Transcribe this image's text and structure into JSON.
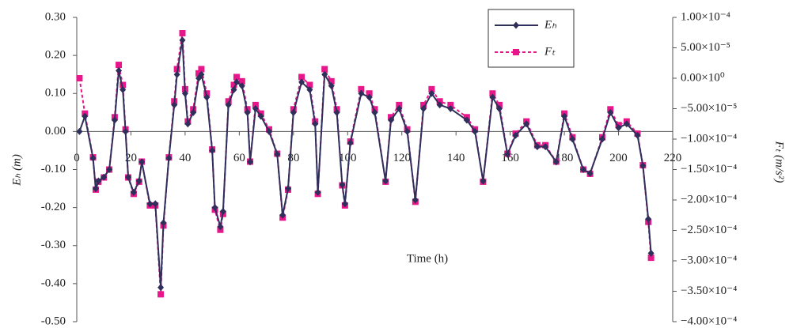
{
  "chart_data": {
    "type": "line",
    "xlabel": "Time (h)",
    "ylabel": "Eₕ (m)",
    "y2label": "Fₜ (m/s²)",
    "x": [
      1,
      3,
      6,
      7,
      8,
      10,
      12,
      14,
      15.5,
      17,
      18,
      19,
      21,
      23,
      24,
      27,
      29,
      31,
      32,
      34,
      36,
      37,
      39,
      40,
      41,
      43,
      45,
      46,
      48,
      50,
      51,
      53,
      54,
      56,
      58,
      59,
      61,
      63,
      64,
      66,
      68,
      71,
      74,
      76,
      78,
      80,
      83,
      86,
      88,
      89,
      91.5,
      94,
      96,
      98,
      99,
      101,
      105,
      108,
      110,
      114,
      116,
      119,
      122,
      125,
      128,
      131,
      134,
      138,
      144,
      147,
      150,
      153.5,
      156,
      159,
      162,
      166,
      170,
      173,
      177,
      180,
      183,
      187,
      189.5,
      194,
      197,
      200,
      203,
      207,
      209,
      211,
      212
    ],
    "series": [
      {
        "name": "Eₕ",
        "color": "#2e2f5a",
        "marker": "diamond",
        "dash": false,
        "values": [
          0,
          0.04,
          -0.07,
          -0.15,
          -0.13,
          -0.12,
          -0.1,
          0.03,
          0.16,
          0.11,
          0.0,
          -0.12,
          -0.16,
          -0.13,
          -0.08,
          -0.19,
          -0.19,
          -0.41,
          -0.24,
          -0.07,
          0.07,
          0.15,
          0.24,
          0.1,
          0.02,
          0.05,
          0.14,
          0.15,
          0.09,
          -0.05,
          -0.2,
          -0.25,
          -0.21,
          0.07,
          0.11,
          0.13,
          0.12,
          0.05,
          -0.08,
          0.06,
          0.04,
          0.0,
          -0.06,
          -0.22,
          -0.15,
          0.05,
          0.13,
          0.11,
          0.02,
          -0.16,
          0.15,
          0.12,
          0.05,
          -0.14,
          -0.19,
          -0.03,
          0.1,
          0.09,
          0.05,
          -0.13,
          0.03,
          0.06,
          0.0,
          -0.18,
          0.06,
          0.1,
          0.07,
          0.06,
          0.03,
          0.0,
          -0.13,
          0.09,
          0.06,
          -0.06,
          -0.01,
          0.02,
          -0.04,
          -0.04,
          -0.08,
          0.04,
          -0.02,
          -0.1,
          -0.11,
          -0.02,
          0.05,
          0.01,
          0.02,
          -0.01,
          -0.09,
          -0.23,
          -0.32
        ]
      },
      {
        "name": "Fₜ",
        "color": "#e8168b",
        "marker": "square",
        "dash": true,
        "axis": "y2",
        "values": [
          0,
          -5.8e-05,
          -0.00013,
          -0.000183,
          -0.00017,
          -0.000163,
          -0.00015,
          -6.4e-05,
          2.2e-05,
          -1.1e-05,
          -8.4e-05,
          -0.000163,
          -0.00019,
          -0.00017,
          -0.000137,
          -0.000209,
          -0.000209,
          -0.000355,
          -0.000242,
          -0.00013,
          -3.8e-05,
          1.5e-05,
          7.4e-05,
          -1.8e-05,
          -7.1e-05,
          -5.1e-05,
          8e-06,
          1.5e-05,
          -2.5e-05,
          -0.000117,
          -0.000216,
          -0.000249,
          -0.000223,
          -3.8e-05,
          -1.1e-05,
          2e-06,
          -5e-06,
          -5.1e-05,
          -0.000137,
          -4.4e-05,
          -5.8e-05,
          -8.4e-05,
          -0.000124,
          -0.000229,
          -0.000183,
          -5.1e-05,
          2e-06,
          -1.1e-05,
          -7.1e-05,
          -0.00019,
          1.5e-05,
          -5e-06,
          -5.1e-05,
          -0.000176,
          -0.000209,
          -0.000104,
          -1.8e-05,
          -2.5e-05,
          -5.1e-05,
          -0.00017,
          -6.4e-05,
          -4.4e-05,
          -8.4e-05,
          -0.000203,
          -4.4e-05,
          -1.8e-05,
          -3.8e-05,
          -4.4e-05,
          -6.4e-05,
          -8.4e-05,
          -0.00017,
          -2.5e-05,
          -4.4e-05,
          -0.000124,
          -9.1e-05,
          -7.1e-05,
          -0.00011,
          -0.00011,
          -0.000137,
          -5.8e-05,
          -9.7e-05,
          -0.00015,
          -0.000157,
          -9.7e-05,
          -5.1e-05,
          -7.7e-05,
          -7.1e-05,
          -9.1e-05,
          -0.000143,
          -0.000236,
          -0.000295
        ]
      }
    ],
    "xlim": [
      0,
      220
    ],
    "xticks": [
      0,
      20,
      40,
      60,
      80,
      100,
      120,
      140,
      160,
      180,
      200,
      220
    ],
    "ylim": [
      -0.5,
      0.3
    ],
    "yticks": [
      {
        "value": -0.5,
        "label": "-0.50"
      },
      {
        "value": -0.4,
        "label": "-0.40"
      },
      {
        "value": -0.3,
        "label": "-0.30"
      },
      {
        "value": -0.2,
        "label": "-0.20"
      },
      {
        "value": -0.1,
        "label": "-0.10"
      },
      {
        "value": 0,
        "label": "0.00"
      },
      {
        "value": 0.1,
        "label": "0.10"
      },
      {
        "value": 0.2,
        "label": "0.20"
      },
      {
        "value": 0.3,
        "label": "0.30"
      }
    ],
    "y2lim": [
      -0.0004,
      0.0001
    ],
    "y2ticks": [
      {
        "value": -0.0004,
        "label": "−4.00×10⁻⁴"
      },
      {
        "value": -0.00035,
        "label": "−3.50×10⁻⁴"
      },
      {
        "value": -0.0003,
        "label": "−3.00×10⁻⁴"
      },
      {
        "value": -0.00025,
        "label": "−2.50×10⁻⁴"
      },
      {
        "value": -0.0002,
        "label": "−2.00×10⁻⁴"
      },
      {
        "value": -0.00015,
        "label": "−1.50×10⁻⁴"
      },
      {
        "value": -0.0001,
        "label": "−1.00×10⁻⁴"
      },
      {
        "value": -5e-05,
        "label": "−5.00×10⁻⁵"
      },
      {
        "value": 0,
        "label": "0.00×10⁰"
      },
      {
        "value": 5e-05,
        "label": "5.00×10⁻⁵"
      },
      {
        "value": 0.0001,
        "label": "1.00×10⁻⁴"
      }
    ],
    "grid": false,
    "legend": "upper right"
  }
}
